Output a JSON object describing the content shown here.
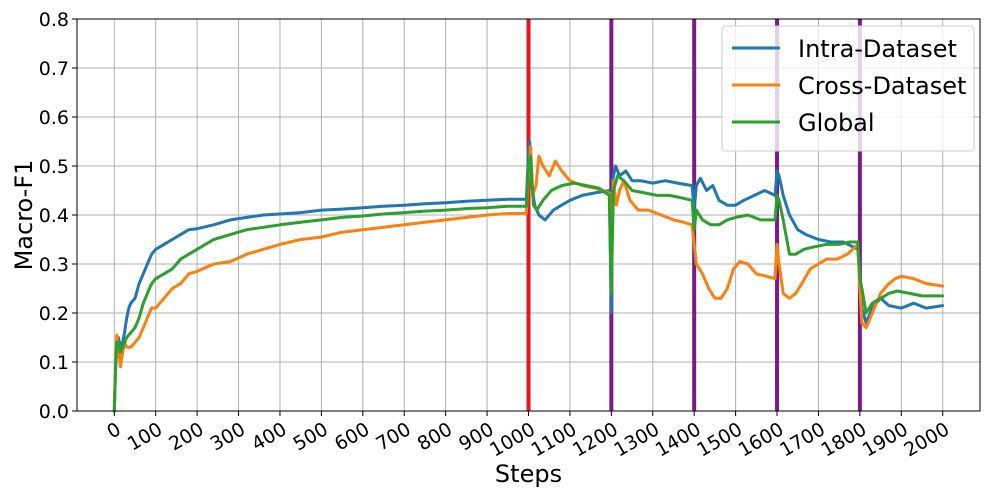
{
  "chart_data": {
    "type": "line",
    "title": "",
    "xlabel": "Steps",
    "ylabel": "Macro-F1",
    "xlim": [
      -90,
      2090
    ],
    "ylim": [
      0.0,
      0.8
    ],
    "x_ticks": [
      0,
      100,
      200,
      300,
      400,
      500,
      600,
      700,
      800,
      900,
      1000,
      1100,
      1200,
      1300,
      1400,
      1500,
      1600,
      1700,
      1800,
      1900,
      2000
    ],
    "x_tick_labels": [
      "0",
      "100",
      "200",
      "300",
      "400",
      "500",
      "600",
      "700",
      "800",
      "900",
      "1000",
      "1100",
      "1200",
      "1300",
      "1400",
      "1500",
      "1600",
      "1700",
      "1800",
      "1900",
      "2000"
    ],
    "y_ticks": [
      0.0,
      0.1,
      0.2,
      0.3,
      0.4,
      0.5,
      0.6,
      0.7,
      0.8
    ],
    "y_tick_labels": [
      "0.0",
      "0.1",
      "0.2",
      "0.3",
      "0.4",
      "0.5",
      "0.6",
      "0.7",
      "0.8"
    ],
    "grid": true,
    "legend_position": "top-right",
    "vertical_lines": [
      {
        "x": 1000,
        "color": "#e8141f"
      },
      {
        "x": 1200,
        "color": "#7b1a8c"
      },
      {
        "x": 1400,
        "color": "#7b1a8c"
      },
      {
        "x": 1600,
        "color": "#7b1a8c"
      },
      {
        "x": 1800,
        "color": "#7b1a8c"
      }
    ],
    "series": [
      {
        "name": "Intra-Dataset",
        "color": "#1f77b4",
        "points": [
          [
            0,
            0.0
          ],
          [
            3,
            0.08
          ],
          [
            6,
            0.13
          ],
          [
            10,
            0.15
          ],
          [
            15,
            0.13
          ],
          [
            20,
            0.14
          ],
          [
            25,
            0.16
          ],
          [
            30,
            0.19
          ],
          [
            35,
            0.21
          ],
          [
            40,
            0.22
          ],
          [
            50,
            0.23
          ],
          [
            60,
            0.26
          ],
          [
            70,
            0.28
          ],
          [
            80,
            0.3
          ],
          [
            90,
            0.32
          ],
          [
            100,
            0.33
          ],
          [
            120,
            0.34
          ],
          [
            140,
            0.35
          ],
          [
            160,
            0.36
          ],
          [
            180,
            0.37
          ],
          [
            200,
            0.372
          ],
          [
            240,
            0.38
          ],
          [
            280,
            0.39
          ],
          [
            320,
            0.395
          ],
          [
            360,
            0.4
          ],
          [
            400,
            0.402
          ],
          [
            450,
            0.405
          ],
          [
            500,
            0.41
          ],
          [
            550,
            0.412
          ],
          [
            600,
            0.415
          ],
          [
            650,
            0.418
          ],
          [
            700,
            0.42
          ],
          [
            750,
            0.423
          ],
          [
            800,
            0.425
          ],
          [
            850,
            0.428
          ],
          [
            900,
            0.43
          ],
          [
            950,
            0.432
          ],
          [
            995,
            0.432
          ],
          [
            1000,
            0.53
          ],
          [
            1003,
            0.55
          ],
          [
            1008,
            0.46
          ],
          [
            1015,
            0.42
          ],
          [
            1025,
            0.4
          ],
          [
            1040,
            0.39
          ],
          [
            1060,
            0.41
          ],
          [
            1080,
            0.42
          ],
          [
            1100,
            0.43
          ],
          [
            1130,
            0.44
          ],
          [
            1160,
            0.445
          ],
          [
            1195,
            0.45
          ],
          [
            1200,
            0.2
          ],
          [
            1203,
            0.47
          ],
          [
            1210,
            0.5
          ],
          [
            1220,
            0.48
          ],
          [
            1235,
            0.49
          ],
          [
            1250,
            0.47
          ],
          [
            1270,
            0.47
          ],
          [
            1300,
            0.465
          ],
          [
            1330,
            0.47
          ],
          [
            1360,
            0.465
          ],
          [
            1395,
            0.46
          ],
          [
            1400,
            0.41
          ],
          [
            1405,
            0.46
          ],
          [
            1415,
            0.475
          ],
          [
            1430,
            0.45
          ],
          [
            1445,
            0.46
          ],
          [
            1460,
            0.43
          ],
          [
            1480,
            0.42
          ],
          [
            1500,
            0.42
          ],
          [
            1520,
            0.43
          ],
          [
            1545,
            0.44
          ],
          [
            1570,
            0.45
          ],
          [
            1595,
            0.44
          ],
          [
            1600,
            0.49
          ],
          [
            1605,
            0.48
          ],
          [
            1615,
            0.44
          ],
          [
            1630,
            0.4
          ],
          [
            1650,
            0.37
          ],
          [
            1670,
            0.36
          ],
          [
            1700,
            0.35
          ],
          [
            1730,
            0.345
          ],
          [
            1760,
            0.345
          ],
          [
            1795,
            0.33
          ],
          [
            1800,
            0.27
          ],
          [
            1805,
            0.21
          ],
          [
            1815,
            0.18
          ],
          [
            1830,
            0.21
          ],
          [
            1850,
            0.23
          ],
          [
            1870,
            0.215
          ],
          [
            1900,
            0.21
          ],
          [
            1930,
            0.22
          ],
          [
            1960,
            0.21
          ],
          [
            2000,
            0.215
          ]
        ]
      },
      {
        "name": "Cross-Dataset",
        "color": "#ff7f0e",
        "points": [
          [
            0,
            0.0
          ],
          [
            3,
            0.1
          ],
          [
            6,
            0.155
          ],
          [
            10,
            0.13
          ],
          [
            15,
            0.09
          ],
          [
            20,
            0.12
          ],
          [
            25,
            0.14
          ],
          [
            30,
            0.13
          ],
          [
            40,
            0.13
          ],
          [
            50,
            0.14
          ],
          [
            60,
            0.15
          ],
          [
            70,
            0.17
          ],
          [
            80,
            0.19
          ],
          [
            90,
            0.21
          ],
          [
            100,
            0.21
          ],
          [
            120,
            0.23
          ],
          [
            140,
            0.25
          ],
          [
            160,
            0.26
          ],
          [
            180,
            0.28
          ],
          [
            200,
            0.285
          ],
          [
            240,
            0.3
          ],
          [
            280,
            0.305
          ],
          [
            320,
            0.32
          ],
          [
            360,
            0.33
          ],
          [
            400,
            0.34
          ],
          [
            450,
            0.35
          ],
          [
            500,
            0.355
          ],
          [
            550,
            0.365
          ],
          [
            600,
            0.37
          ],
          [
            650,
            0.375
          ],
          [
            700,
            0.38
          ],
          [
            750,
            0.385
          ],
          [
            800,
            0.39
          ],
          [
            850,
            0.395
          ],
          [
            900,
            0.4
          ],
          [
            950,
            0.403
          ],
          [
            995,
            0.403
          ],
          [
            1000,
            0.48
          ],
          [
            1005,
            0.54
          ],
          [
            1010,
            0.44
          ],
          [
            1018,
            0.46
          ],
          [
            1025,
            0.52
          ],
          [
            1035,
            0.5
          ],
          [
            1050,
            0.48
          ],
          [
            1065,
            0.51
          ],
          [
            1080,
            0.49
          ],
          [
            1100,
            0.47
          ],
          [
            1130,
            0.46
          ],
          [
            1160,
            0.455
          ],
          [
            1195,
            0.445
          ],
          [
            1200,
            0.32
          ],
          [
            1205,
            0.47
          ],
          [
            1212,
            0.42
          ],
          [
            1220,
            0.45
          ],
          [
            1230,
            0.47
          ],
          [
            1245,
            0.43
          ],
          [
            1265,
            0.41
          ],
          [
            1290,
            0.41
          ],
          [
            1320,
            0.4
          ],
          [
            1350,
            0.39
          ],
          [
            1375,
            0.385
          ],
          [
            1395,
            0.38
          ],
          [
            1400,
            0.34
          ],
          [
            1405,
            0.3
          ],
          [
            1420,
            0.28
          ],
          [
            1435,
            0.25
          ],
          [
            1450,
            0.23
          ],
          [
            1465,
            0.23
          ],
          [
            1480,
            0.25
          ],
          [
            1495,
            0.29
          ],
          [
            1510,
            0.305
          ],
          [
            1530,
            0.3
          ],
          [
            1550,
            0.28
          ],
          [
            1575,
            0.275
          ],
          [
            1595,
            0.27
          ],
          [
            1600,
            0.34
          ],
          [
            1605,
            0.3
          ],
          [
            1615,
            0.24
          ],
          [
            1630,
            0.23
          ],
          [
            1645,
            0.24
          ],
          [
            1660,
            0.26
          ],
          [
            1680,
            0.29
          ],
          [
            1700,
            0.3
          ],
          [
            1720,
            0.31
          ],
          [
            1745,
            0.31
          ],
          [
            1770,
            0.32
          ],
          [
            1795,
            0.34
          ],
          [
            1800,
            0.25
          ],
          [
            1805,
            0.18
          ],
          [
            1815,
            0.17
          ],
          [
            1830,
            0.2
          ],
          [
            1850,
            0.24
          ],
          [
            1870,
            0.26
          ],
          [
            1885,
            0.27
          ],
          [
            1900,
            0.275
          ],
          [
            1930,
            0.27
          ],
          [
            1960,
            0.26
          ],
          [
            2000,
            0.255
          ]
        ]
      },
      {
        "name": "Global",
        "color": "#2ca02c",
        "points": [
          [
            0,
            0.0
          ],
          [
            3,
            0.09
          ],
          [
            6,
            0.14
          ],
          [
            10,
            0.14
          ],
          [
            15,
            0.12
          ],
          [
            20,
            0.13
          ],
          [
            25,
            0.14
          ],
          [
            30,
            0.15
          ],
          [
            40,
            0.16
          ],
          [
            50,
            0.17
          ],
          [
            60,
            0.19
          ],
          [
            70,
            0.22
          ],
          [
            80,
            0.24
          ],
          [
            90,
            0.26
          ],
          [
            100,
            0.27
          ],
          [
            120,
            0.28
          ],
          [
            140,
            0.29
          ],
          [
            160,
            0.31
          ],
          [
            180,
            0.32
          ],
          [
            200,
            0.33
          ],
          [
            240,
            0.35
          ],
          [
            280,
            0.36
          ],
          [
            320,
            0.37
          ],
          [
            360,
            0.375
          ],
          [
            400,
            0.38
          ],
          [
            450,
            0.385
          ],
          [
            500,
            0.39
          ],
          [
            550,
            0.395
          ],
          [
            600,
            0.398
          ],
          [
            650,
            0.402
          ],
          [
            700,
            0.405
          ],
          [
            750,
            0.408
          ],
          [
            800,
            0.41
          ],
          [
            850,
            0.413
          ],
          [
            900,
            0.415
          ],
          [
            950,
            0.418
          ],
          [
            995,
            0.418
          ],
          [
            1000,
            0.5
          ],
          [
            1005,
            0.52
          ],
          [
            1012,
            0.42
          ],
          [
            1020,
            0.41
          ],
          [
            1035,
            0.43
          ],
          [
            1055,
            0.45
          ],
          [
            1080,
            0.46
          ],
          [
            1110,
            0.465
          ],
          [
            1140,
            0.46
          ],
          [
            1170,
            0.455
          ],
          [
            1195,
            0.44
          ],
          [
            1200,
            0.24
          ],
          [
            1205,
            0.45
          ],
          [
            1215,
            0.48
          ],
          [
            1230,
            0.47
          ],
          [
            1250,
            0.45
          ],
          [
            1280,
            0.445
          ],
          [
            1310,
            0.44
          ],
          [
            1340,
            0.44
          ],
          [
            1370,
            0.435
          ],
          [
            1395,
            0.43
          ],
          [
            1400,
            0.37
          ],
          [
            1405,
            0.41
          ],
          [
            1420,
            0.39
          ],
          [
            1440,
            0.38
          ],
          [
            1460,
            0.38
          ],
          [
            1480,
            0.39
          ],
          [
            1500,
            0.395
          ],
          [
            1530,
            0.4
          ],
          [
            1560,
            0.39
          ],
          [
            1595,
            0.39
          ],
          [
            1600,
            0.44
          ],
          [
            1605,
            0.43
          ],
          [
            1615,
            0.39
          ],
          [
            1630,
            0.32
          ],
          [
            1645,
            0.32
          ],
          [
            1665,
            0.33
          ],
          [
            1690,
            0.335
          ],
          [
            1720,
            0.34
          ],
          [
            1750,
            0.34
          ],
          [
            1775,
            0.345
          ],
          [
            1795,
            0.345
          ],
          [
            1800,
            0.27
          ],
          [
            1805,
            0.25
          ],
          [
            1815,
            0.2
          ],
          [
            1830,
            0.22
          ],
          [
            1850,
            0.23
          ],
          [
            1870,
            0.24
          ],
          [
            1890,
            0.245
          ],
          [
            1920,
            0.24
          ],
          [
            1950,
            0.235
          ],
          [
            2000,
            0.235
          ]
        ]
      }
    ]
  }
}
